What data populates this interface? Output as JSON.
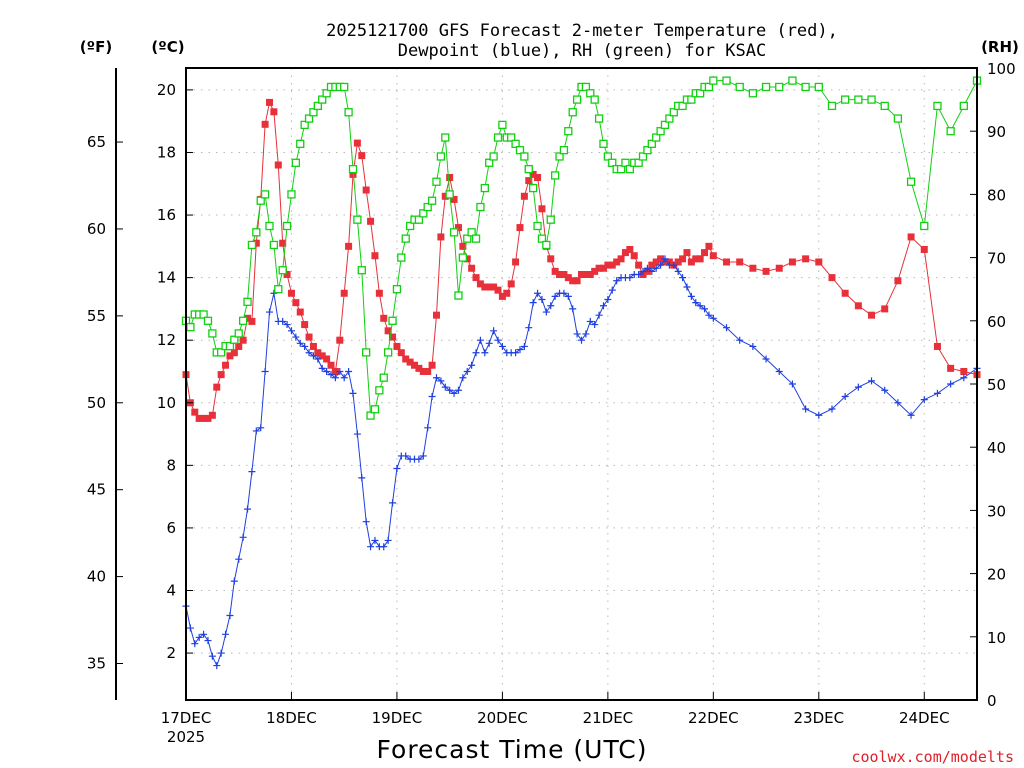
{
  "chart_data": {
    "type": "line",
    "title_line1": "2025121700 GFS Forecast 2-meter Temperature (red),",
    "title_line2": "Dewpoint (blue), RH (green) for KSAC",
    "unit_f": "(ºF)",
    "unit_c": "(ºC)",
    "unit_rh": "(RH)",
    "xlabel": "Forecast Time (UTC)",
    "credit": "coolwx.com/modelts",
    "xlim": [
      0,
      180
    ],
    "ylim_c": [
      0.5,
      20.7
    ],
    "ylim_rh": [
      0,
      100
    ],
    "x_ticks": [
      {
        "x": 0,
        "label": "17DEC",
        "sub": "2025"
      },
      {
        "x": 24,
        "label": "18DEC",
        "sub": ""
      },
      {
        "x": 48,
        "label": "19DEC",
        "sub": ""
      },
      {
        "x": 72,
        "label": "20DEC",
        "sub": ""
      },
      {
        "x": 96,
        "label": "21DEC",
        "sub": ""
      },
      {
        "x": 120,
        "label": "22DEC",
        "sub": ""
      },
      {
        "x": 144,
        "label": "23DEC",
        "sub": ""
      },
      {
        "x": 168,
        "label": "24DEC",
        "sub": ""
      }
    ],
    "c_ticks": [
      2,
      4,
      6,
      8,
      10,
      12,
      14,
      16,
      18,
      20
    ],
    "f_ticks": [
      35,
      40,
      45,
      50,
      55,
      60,
      65
    ],
    "rh_ticks": [
      0,
      10,
      20,
      30,
      40,
      50,
      60,
      70,
      80,
      90,
      100
    ],
    "colors": {
      "temperature": "#e8303a",
      "dewpoint": "#1f3fe0",
      "rh": "#10d010",
      "grid": "#b8b8b8",
      "credit": "#e0202a"
    },
    "series": [
      {
        "name": "Temperature (°C)",
        "marker": "filled-square",
        "axis": "c",
        "x": [
          0,
          1,
          2,
          3,
          4,
          5,
          6,
          7,
          8,
          9,
          10,
          11,
          12,
          13,
          14,
          15,
          16,
          17,
          18,
          19,
          20,
          21,
          22,
          23,
          24,
          25,
          26,
          27,
          28,
          29,
          30,
          31,
          32,
          33,
          34,
          35,
          36,
          37,
          38,
          39,
          40,
          41,
          42,
          43,
          44,
          45,
          46,
          47,
          48,
          49,
          50,
          51,
          52,
          53,
          54,
          55,
          56,
          57,
          58,
          59,
          60,
          61,
          62,
          63,
          64,
          65,
          66,
          67,
          68,
          69,
          70,
          71,
          72,
          73,
          74,
          75,
          76,
          77,
          78,
          79,
          80,
          81,
          82,
          83,
          84,
          85,
          86,
          87,
          88,
          89,
          90,
          91,
          92,
          93,
          94,
          95,
          96,
          97,
          98,
          99,
          100,
          101,
          102,
          103,
          104,
          105,
          106,
          107,
          108,
          109,
          110,
          111,
          112,
          113,
          114,
          115,
          116,
          117,
          118,
          119,
          120,
          123,
          126,
          129,
          132,
          135,
          138,
          141,
          144,
          147,
          150,
          153,
          156,
          159,
          162,
          165,
          168,
          171,
          174,
          177,
          180
        ],
        "values": [
          10.9,
          10.0,
          9.7,
          9.5,
          9.5,
          9.5,
          9.6,
          10.5,
          10.9,
          11.2,
          11.5,
          11.6,
          11.8,
          12.0,
          12.7,
          12.6,
          15.1,
          16.5,
          18.9,
          19.6,
          19.3,
          17.6,
          15.1,
          14.1,
          13.5,
          13.2,
          12.9,
          12.5,
          12.1,
          11.8,
          11.6,
          11.5,
          11.4,
          11.2,
          11.0,
          12.0,
          13.5,
          15.0,
          17.3,
          18.3,
          17.9,
          16.8,
          15.8,
          14.7,
          13.5,
          12.7,
          12.3,
          12.1,
          11.8,
          11.6,
          11.4,
          11.3,
          11.2,
          11.1,
          11.0,
          11.0,
          11.2,
          12.8,
          15.3,
          16.6,
          17.2,
          16.5,
          15.6,
          15.0,
          14.6,
          14.3,
          14.0,
          13.8,
          13.7,
          13.7,
          13.7,
          13.6,
          13.4,
          13.5,
          13.8,
          14.5,
          15.6,
          16.6,
          17.1,
          17.3,
          17.2,
          16.2,
          15.0,
          14.6,
          14.2,
          14.1,
          14.1,
          14.0,
          13.9,
          13.9,
          14.1,
          14.1,
          14.1,
          14.2,
          14.3,
          14.3,
          14.4,
          14.4,
          14.5,
          14.6,
          14.8,
          14.9,
          14.7,
          14.4,
          14.1,
          14.2,
          14.4,
          14.5,
          14.6,
          14.5,
          14.5,
          14.4,
          14.5,
          14.6,
          14.8,
          14.5,
          14.6,
          14.6,
          14.8,
          15.0,
          14.7,
          14.5,
          14.5,
          14.3,
          14.2,
          14.3,
          14.5,
          14.6,
          14.5,
          14.0,
          13.5,
          13.1,
          12.8,
          13.0,
          13.9,
          15.3,
          14.9,
          11.8,
          11.1,
          11.0,
          10.9
        ]
      },
      {
        "name": "Dewpoint (°C)",
        "marker": "plus",
        "axis": "c",
        "x": [
          0,
          1,
          2,
          3,
          4,
          5,
          6,
          7,
          8,
          9,
          10,
          11,
          12,
          13,
          14,
          15,
          16,
          17,
          18,
          19,
          20,
          21,
          22,
          23,
          24,
          25,
          26,
          27,
          28,
          29,
          30,
          31,
          32,
          33,
          34,
          35,
          36,
          37,
          38,
          39,
          40,
          41,
          42,
          43,
          44,
          45,
          46,
          47,
          48,
          49,
          50,
          51,
          52,
          53,
          54,
          55,
          56,
          57,
          58,
          59,
          60,
          61,
          62,
          63,
          64,
          65,
          66,
          67,
          68,
          69,
          70,
          71,
          72,
          73,
          74,
          75,
          76,
          77,
          78,
          79,
          80,
          81,
          82,
          83,
          84,
          85,
          86,
          87,
          88,
          89,
          90,
          91,
          92,
          93,
          94,
          95,
          96,
          97,
          98,
          99,
          100,
          101,
          102,
          103,
          104,
          105,
          106,
          107,
          108,
          109,
          110,
          111,
          112,
          113,
          114,
          115,
          116,
          117,
          118,
          119,
          120,
          123,
          126,
          129,
          132,
          135,
          138,
          141,
          144,
          147,
          150,
          153,
          156,
          159,
          162,
          165,
          168,
          171,
          174,
          177,
          180
        ],
        "values": [
          3.5,
          2.8,
          2.3,
          2.5,
          2.6,
          2.4,
          1.9,
          1.6,
          2.0,
          2.6,
          3.2,
          4.3,
          5.0,
          5.7,
          6.6,
          7.8,
          9.1,
          9.2,
          11.0,
          12.9,
          13.5,
          12.6,
          12.6,
          12.5,
          12.3,
          12.1,
          11.9,
          11.8,
          11.6,
          11.5,
          11.4,
          11.1,
          11.0,
          10.9,
          10.8,
          11.0,
          10.8,
          11.0,
          10.3,
          9.0,
          7.6,
          6.2,
          5.4,
          5.6,
          5.4,
          5.4,
          5.6,
          6.8,
          7.9,
          8.3,
          8.3,
          8.2,
          8.2,
          8.2,
          8.3,
          9.2,
          10.2,
          10.8,
          10.7,
          10.5,
          10.4,
          10.3,
          10.4,
          10.8,
          11.0,
          11.2,
          11.6,
          12.0,
          11.6,
          11.9,
          12.3,
          12.0,
          11.8,
          11.6,
          11.6,
          11.6,
          11.7,
          11.8,
          12.4,
          13.2,
          13.5,
          13.3,
          12.9,
          13.1,
          13.4,
          13.5,
          13.5,
          13.4,
          13.0,
          12.2,
          12.0,
          12.2,
          12.6,
          12.5,
          12.8,
          13.1,
          13.3,
          13.6,
          13.9,
          14.0,
          14.0,
          14.0,
          14.1,
          14.1,
          14.2,
          14.3,
          14.2,
          14.3,
          14.4,
          14.6,
          14.4,
          14.4,
          14.2,
          14.0,
          13.7,
          13.4,
          13.2,
          13.1,
          13.0,
          12.8,
          12.7,
          12.4,
          12.0,
          11.8,
          11.4,
          11.0,
          10.6,
          9.8,
          9.6,
          9.8,
          10.2,
          10.5,
          10.7,
          10.4,
          10.0,
          9.6,
          10.1,
          10.3,
          10.6,
          10.8,
          11.1
        ]
      },
      {
        "name": "RH (%)",
        "marker": "open-square",
        "axis": "rh",
        "x": [
          0,
          1,
          2,
          3,
          4,
          5,
          6,
          7,
          8,
          9,
          10,
          11,
          12,
          13,
          14,
          15,
          16,
          17,
          18,
          19,
          20,
          21,
          22,
          23,
          24,
          25,
          26,
          27,
          28,
          29,
          30,
          31,
          32,
          33,
          34,
          35,
          36,
          37,
          38,
          39,
          40,
          41,
          42,
          43,
          44,
          45,
          46,
          47,
          48,
          49,
          50,
          51,
          52,
          53,
          54,
          55,
          56,
          57,
          58,
          59,
          60,
          61,
          62,
          63,
          64,
          65,
          66,
          67,
          68,
          69,
          70,
          71,
          72,
          73,
          74,
          75,
          76,
          77,
          78,
          79,
          80,
          81,
          82,
          83,
          84,
          85,
          86,
          87,
          88,
          89,
          90,
          91,
          92,
          93,
          94,
          95,
          96,
          97,
          98,
          99,
          100,
          101,
          102,
          103,
          104,
          105,
          106,
          107,
          108,
          109,
          110,
          111,
          112,
          113,
          114,
          115,
          116,
          117,
          118,
          119,
          120,
          123,
          126,
          129,
          132,
          135,
          138,
          141,
          144,
          147,
          150,
          153,
          156,
          159,
          162,
          165,
          168,
          171,
          174,
          177,
          180
        ],
        "values": [
          60,
          59,
          61,
          61,
          61,
          60,
          58,
          55,
          55,
          56,
          56,
          57,
          58,
          60,
          63,
          72,
          74,
          79,
          80,
          75,
          72,
          65,
          68,
          75,
          80,
          85,
          88,
          91,
          92,
          93,
          94,
          95,
          96,
          97,
          97,
          97,
          97,
          93,
          84,
          76,
          68,
          55,
          45,
          46,
          49,
          51,
          55,
          60,
          65,
          70,
          73,
          75,
          76,
          76,
          77,
          78,
          79,
          82,
          86,
          89,
          80,
          74,
          64,
          70,
          73,
          74,
          73,
          78,
          81,
          85,
          86,
          89,
          91,
          89,
          89,
          88,
          87,
          86,
          84,
          81,
          75,
          73,
          72,
          76,
          83,
          86,
          87,
          90,
          93,
          95,
          97,
          97,
          96,
          95,
          92,
          88,
          86,
          85,
          84,
          84,
          85,
          84,
          85,
          85,
          86,
          87,
          88,
          89,
          90,
          91,
          92,
          93,
          94,
          94,
          95,
          95,
          96,
          96,
          97,
          97,
          98,
          98,
          97,
          96,
          97,
          97,
          98,
          97,
          97,
          94,
          95,
          95,
          95,
          94,
          92,
          82,
          75,
          94,
          90,
          94,
          98
        ]
      }
    ]
  }
}
